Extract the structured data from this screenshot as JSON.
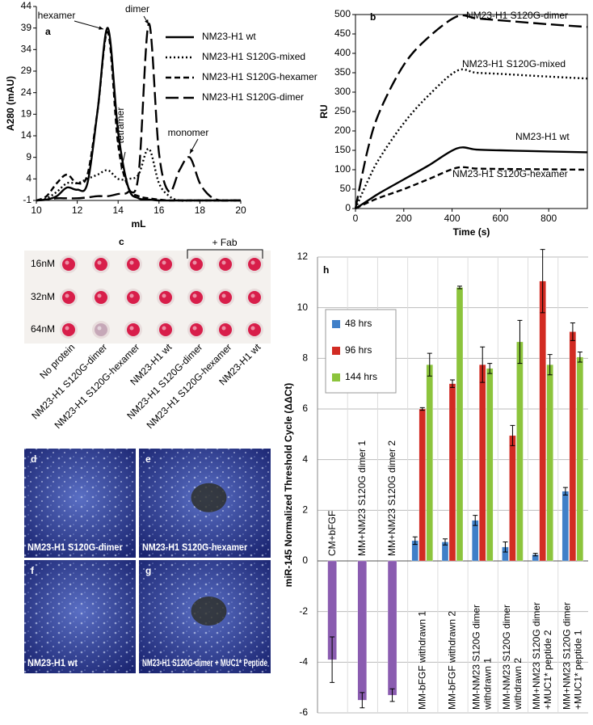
{
  "chart_data": [
    {
      "type": "line",
      "panel": "a",
      "ylabel": "A280 (mAU)",
      "xlabel": "mL",
      "x": [
        10,
        10.5,
        11,
        11.5,
        12,
        12.5,
        13,
        13.5,
        14,
        14.5,
        15,
        15.5,
        16,
        16.5,
        17,
        17.5,
        18,
        18.5,
        19,
        19.5,
        20
      ],
      "xlim": [
        10,
        20
      ],
      "xticks": [
        10,
        12,
        14,
        16,
        18,
        20
      ],
      "ylim": [
        -1,
        44
      ],
      "yticks": [
        -1,
        4,
        9,
        14,
        19,
        24,
        29,
        34,
        39,
        44
      ],
      "series": [
        {
          "name": "NM23-H1 wt",
          "color": "#000000",
          "dash": "solid",
          "values": [
            -1,
            -0.8,
            0,
            2,
            1.5,
            3,
            20,
            39,
            15,
            2,
            -0.5,
            -0.8,
            -1,
            -1,
            -1,
            -1,
            -1,
            -1,
            -1,
            -1,
            -1
          ]
        },
        {
          "name": "NM23-H1 S120G-mixed",
          "color": "#000000",
          "dash": "dotted",
          "values": [
            -1,
            -0.5,
            1,
            3,
            3,
            4,
            5,
            6,
            4,
            4,
            5,
            11,
            3,
            0,
            -1,
            -1,
            -1,
            -1,
            -1,
            -1,
            -1
          ]
        },
        {
          "name": "NM23-H1 S120G-hexamer",
          "color": "#000000",
          "dash": "dashed",
          "values": [
            -1,
            0,
            3,
            5,
            3,
            5,
            20,
            38,
            12,
            2,
            0,
            -0.5,
            -0.8,
            -1,
            -1,
            -1,
            -1,
            -1,
            -1,
            -1,
            -1
          ]
        },
        {
          "name": "NM23-H1 S120G-dimer",
          "color": "#000000",
          "dash": "longdash",
          "values": [
            -1,
            -0.8,
            -0.5,
            -0.5,
            -0.5,
            -0.3,
            0,
            0,
            0.5,
            1,
            5,
            40,
            10,
            1,
            6,
            9,
            3,
            0,
            -1,
            -1,
            -1
          ]
        }
      ],
      "annotations": [
        "hexamer",
        "dimer",
        "tetramer",
        "monomer"
      ]
    },
    {
      "type": "line",
      "panel": "b",
      "ylabel": "RU",
      "xlabel": "Time (s)",
      "x": [
        0,
        50,
        100,
        200,
        300,
        420,
        500,
        600,
        800,
        960
      ],
      "xlim": [
        0,
        960
      ],
      "xticks": [
        0,
        200,
        400,
        600,
        800
      ],
      "ylim": [
        0,
        500
      ],
      "yticks": [
        0,
        50,
        100,
        150,
        200,
        250,
        300,
        350,
        400,
        450,
        500
      ],
      "series": [
        {
          "name": "NM23-H1 S120G-dimer",
          "color": "#000000",
          "dash": "longdash",
          "values": [
            0,
            150,
            250,
            370,
            440,
            495,
            490,
            485,
            475,
            468
          ]
        },
        {
          "name": "NM23-H1 S120G-mixed",
          "color": "#000000",
          "dash": "dotted",
          "values": [
            0,
            70,
            130,
            220,
            290,
            355,
            350,
            347,
            340,
            335
          ]
        },
        {
          "name": "NM23-H1 wt",
          "color": "#000000",
          "dash": "solid",
          "values": [
            0,
            20,
            40,
            75,
            110,
            155,
            152,
            150,
            147,
            145
          ]
        },
        {
          "name": "NM23-H1 S120G-hexamer",
          "color": "#000000",
          "dash": "dashed",
          "values": [
            0,
            15,
            28,
            50,
            75,
            105,
            103,
            102,
            101,
            100
          ]
        }
      ]
    },
    {
      "type": "bar",
      "panel": "h",
      "ylabel": "miR-145 Normalized Threshold Cycle (ΔΔCt)",
      "categories": [
        "CM+bFGF",
        "MM+NM23 S120G dimer 1",
        "MM+NM23 S120G dimer 2",
        "MM-bFGF withdrawn 1",
        "MM-bFGF withdrawn 2",
        "MM-NM23 S120G dimer withdrawn 1",
        "MM-NM23 S120G dimer withdrawn 2",
        "MM+NM23 S120G dimer +MUC1* peptide 2",
        "MM+NM23 S120G dimer +MUC1* peptide 1"
      ],
      "ylim": [
        -6,
        12
      ],
      "yticks": [
        -6,
        -4,
        -2,
        0,
        2,
        4,
        6,
        8,
        10,
        12
      ],
      "grid": true,
      "legend": "upper left",
      "series": [
        {
          "name": "48 hrs",
          "color": "#3f7fc8",
          "values": [
            null,
            null,
            null,
            0.8,
            0.75,
            1.6,
            0.55,
            0.25,
            2.75
          ],
          "errors": [
            null,
            null,
            null,
            0.15,
            0.12,
            0.2,
            0.2,
            0.05,
            0.15
          ]
        },
        {
          "name": "96 hrs",
          "color": "#d22b23",
          "values": [
            null,
            null,
            null,
            6.0,
            7.0,
            7.75,
            4.95,
            11.05,
            9.05
          ],
          "errors": [
            null,
            null,
            null,
            0.05,
            0.15,
            0.7,
            0.4,
            1.25,
            0.35
          ]
        },
        {
          "name": "144 hrs",
          "color": "#8cc43c",
          "values": [
            null,
            null,
            null,
            7.75,
            10.8,
            7.6,
            8.65,
            7.75,
            8.05
          ],
          "errors": [
            null,
            null,
            null,
            0.45,
            0.05,
            0.2,
            0.85,
            0.4,
            0.2
          ]
        },
        {
          "color": "#8a5cb0",
          "values": [
            -3.9,
            -5.5,
            -5.3,
            null,
            null,
            null,
            null,
            null,
            null
          ],
          "errors": [
            0.9,
            0.3,
            0.25,
            null,
            null,
            null,
            null,
            null,
            null
          ]
        }
      ]
    }
  ],
  "plate": {
    "panel": "c",
    "bracket": "+ Fab",
    "rows": [
      "16nM",
      "32nM",
      "64nM"
    ],
    "columns": [
      "No protein",
      "NM23-H1 S120G-dimer",
      "NM23-H1 S120G-hexamer",
      "NM23-H1 wt",
      "NM23-H1 S120G-dimer",
      "NM23-H1 S120G-hexamer",
      "NM23-H1 wt"
    ]
  },
  "micrographs": [
    {
      "panel": "d",
      "caption": "NM23-H1 S120G-dimer"
    },
    {
      "panel": "e",
      "caption": "NM23-H1 S120G-hexamer"
    },
    {
      "panel": "f",
      "caption": "NM23-H1 wt"
    },
    {
      "panel": "g",
      "caption": "NM23-H1 S120G-dimer + MUC1* Peptide"
    }
  ]
}
